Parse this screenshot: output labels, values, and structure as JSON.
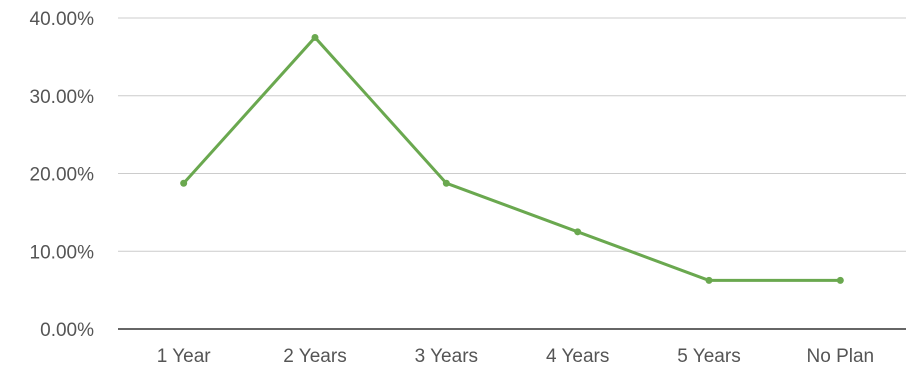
{
  "chart_data": {
    "type": "line",
    "categories": [
      "1 Year",
      "2 Years",
      "3 Years",
      "4 Years",
      "5 Years",
      "No Plan"
    ],
    "series": [
      {
        "values": [
          18.75,
          37.5,
          18.75,
          12.5,
          6.25,
          6.25
        ],
        "color": "#6aa84f"
      }
    ],
    "ylim": [
      0,
      40
    ],
    "yticks": [
      0,
      10,
      20,
      30,
      40
    ],
    "ytick_labels": [
      "0.00%",
      "10.00%",
      "20.00%",
      "30.00%",
      "40.00%"
    ],
    "grid": true,
    "title": "",
    "xlabel": "",
    "ylabel": "",
    "colors": {
      "grid": "#cccccc",
      "axis": "#333333",
      "text": "#555555"
    }
  }
}
